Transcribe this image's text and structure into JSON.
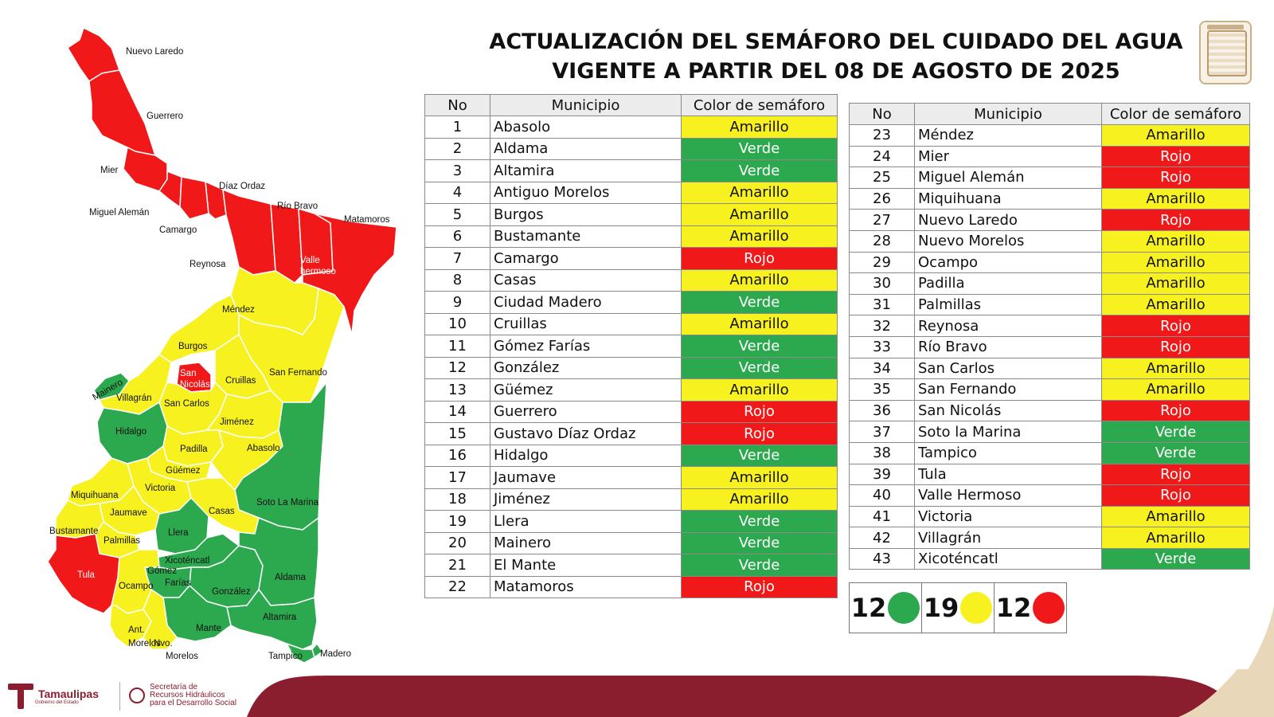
{
  "title": {
    "line1": "ACTUALIZACIÓN DEL SEMÁFORO DEL CUIDADO DEL AGUA",
    "line2": "VIGENTE A PARTIR DEL 08 DE AGOSTO DE 2025"
  },
  "colors": {
    "Verde": "#2ca84f",
    "Amarillo": "#f7f11f",
    "Rojo": "#f01818",
    "brand": "#8b1e2e"
  },
  "table_headers": {
    "no": "No",
    "municipio": "Municipio",
    "color": "Color de semáforo"
  },
  "table1": [
    {
      "no": "1",
      "municipio": "Abasolo",
      "color": "Amarillo"
    },
    {
      "no": "2",
      "municipio": "Aldama",
      "color": "Verde"
    },
    {
      "no": "3",
      "municipio": "Altamira",
      "color": "Verde"
    },
    {
      "no": "4",
      "municipio": "Antiguo Morelos",
      "color": "Amarillo"
    },
    {
      "no": "5",
      "municipio": "Burgos",
      "color": "Amarillo"
    },
    {
      "no": "6",
      "municipio": "Bustamante",
      "color": "Amarillo"
    },
    {
      "no": "7",
      "municipio": "Camargo",
      "color": "Rojo"
    },
    {
      "no": "8",
      "municipio": "Casas",
      "color": "Amarillo"
    },
    {
      "no": "9",
      "municipio": "Ciudad Madero",
      "color": "Verde"
    },
    {
      "no": "10",
      "municipio": "Cruillas",
      "color": "Amarillo"
    },
    {
      "no": "11",
      "municipio": "Gómez Farías",
      "color": "Verde"
    },
    {
      "no": "12",
      "municipio": "González",
      "color": "Verde"
    },
    {
      "no": "13",
      "municipio": "Güémez",
      "color": "Amarillo"
    },
    {
      "no": "14",
      "municipio": "Guerrero",
      "color": "Rojo"
    },
    {
      "no": "15",
      "municipio": "Gustavo Díaz Ordaz",
      "color": "Rojo"
    },
    {
      "no": "16",
      "municipio": "Hidalgo",
      "color": "Verde"
    },
    {
      "no": "17",
      "municipio": "Jaumave",
      "color": "Amarillo"
    },
    {
      "no": "18",
      "municipio": "Jiménez",
      "color": "Amarillo"
    },
    {
      "no": "19",
      "municipio": "Llera",
      "color": "Verde"
    },
    {
      "no": "20",
      "municipio": "Mainero",
      "color": "Verde"
    },
    {
      "no": "21",
      "municipio": "El Mante",
      "color": "Verde"
    },
    {
      "no": "22",
      "municipio": "Matamoros",
      "color": "Rojo"
    }
  ],
  "table2": [
    {
      "no": "23",
      "municipio": "Méndez",
      "color": "Amarillo"
    },
    {
      "no": "24",
      "municipio": "Mier",
      "color": "Rojo"
    },
    {
      "no": "25",
      "municipio": "Miguel Alemán",
      "color": "Rojo"
    },
    {
      "no": "26",
      "municipio": "Miquihuana",
      "color": "Amarillo"
    },
    {
      "no": "27",
      "municipio": "Nuevo Laredo",
      "color": "Rojo"
    },
    {
      "no": "28",
      "municipio": "Nuevo Morelos",
      "color": "Amarillo"
    },
    {
      "no": "29",
      "municipio": "Ocampo",
      "color": "Amarillo"
    },
    {
      "no": "30",
      "municipio": "Padilla",
      "color": "Amarillo"
    },
    {
      "no": "31",
      "municipio": "Palmillas",
      "color": "Amarillo"
    },
    {
      "no": "32",
      "municipio": "Reynosa",
      "color": "Rojo"
    },
    {
      "no": "33",
      "municipio": "Río Bravo",
      "color": "Rojo"
    },
    {
      "no": "34",
      "municipio": "San Carlos",
      "color": "Amarillo"
    },
    {
      "no": "35",
      "municipio": "San Fernando",
      "color": "Amarillo"
    },
    {
      "no": "36",
      "municipio": "San Nicolás",
      "color": "Rojo"
    },
    {
      "no": "37",
      "municipio": "Soto la Marina",
      "color": "Verde"
    },
    {
      "no": "38",
      "municipio": "Tampico",
      "color": "Verde"
    },
    {
      "no": "39",
      "municipio": "Tula",
      "color": "Rojo"
    },
    {
      "no": "40",
      "municipio": "Valle Hermoso",
      "color": "Rojo"
    },
    {
      "no": "41",
      "municipio": "Victoria",
      "color": "Amarillo"
    },
    {
      "no": "42",
      "municipio": "Villagrán",
      "color": "Amarillo"
    },
    {
      "no": "43",
      "municipio": "Xicoténcatl",
      "color": "Verde"
    }
  ],
  "summary": [
    {
      "count": "12",
      "color": "Verde"
    },
    {
      "count": "19",
      "color": "Amarillo"
    },
    {
      "count": "12",
      "color": "Rojo"
    }
  ],
  "map_labels": {
    "nuevo_laredo": "Nuevo Laredo",
    "guerrero": "Guerrero",
    "mier": "Mier",
    "diaz_ordaz": "Díaz Ordaz",
    "rio_bravo": "Río Bravo",
    "matamoros": "Matamoros",
    "miguel_aleman": "Miguel Alemán",
    "camargo": "Camargo",
    "reynosa": "Reynosa",
    "valle_line1": "Valle",
    "valle_line2": "hermoso",
    "mendez": "Méndez",
    "burgos": "Burgos",
    "san_nicolas_1": "San",
    "san_nicolas_2": "Nicolás",
    "cruillas": "Cruillas",
    "san_fernando": "San Fernando",
    "mainero": "Mainero",
    "villagran": "Villagrán",
    "san_carlos": "San Carlos",
    "jimenez": "Jiménez",
    "hidalgo": "Hidalgo",
    "padilla": "Padilla",
    "abasolo": "Abasolo",
    "guemez": "Güémez",
    "victoria": "Victoria",
    "soto_la_marina": "Soto La Marina",
    "miquihuana": "Miquihuana",
    "jaumave": "Jaumave",
    "casas": "Casas",
    "llera": "Llera",
    "bustamante": "Bustamante",
    "palmillas": "Palmillas",
    "tula": "Tula",
    "xicotencatl": "Xicoténcatl",
    "gomez": "Gómez",
    "farias": "Farías",
    "ocampo": "Ocampo",
    "gonzalez": "González",
    "aldama": "Aldama",
    "mante": "Mante",
    "altamira": "Altamira",
    "ant": "Ant.",
    "morelos": "Morelos",
    "nvo": "Nvo.",
    "nvo_morelos": "Morelos",
    "tampico": "Tampico",
    "madero": "Madero"
  },
  "footer": {
    "tamaulipas": "Tamaulipas",
    "gobierno": "Gobierno del Estado",
    "sec_line1": "Secretaría de",
    "sec_line2": "Recursos Hidráulicos",
    "sec_line3": "para el Desarrollo Social"
  }
}
